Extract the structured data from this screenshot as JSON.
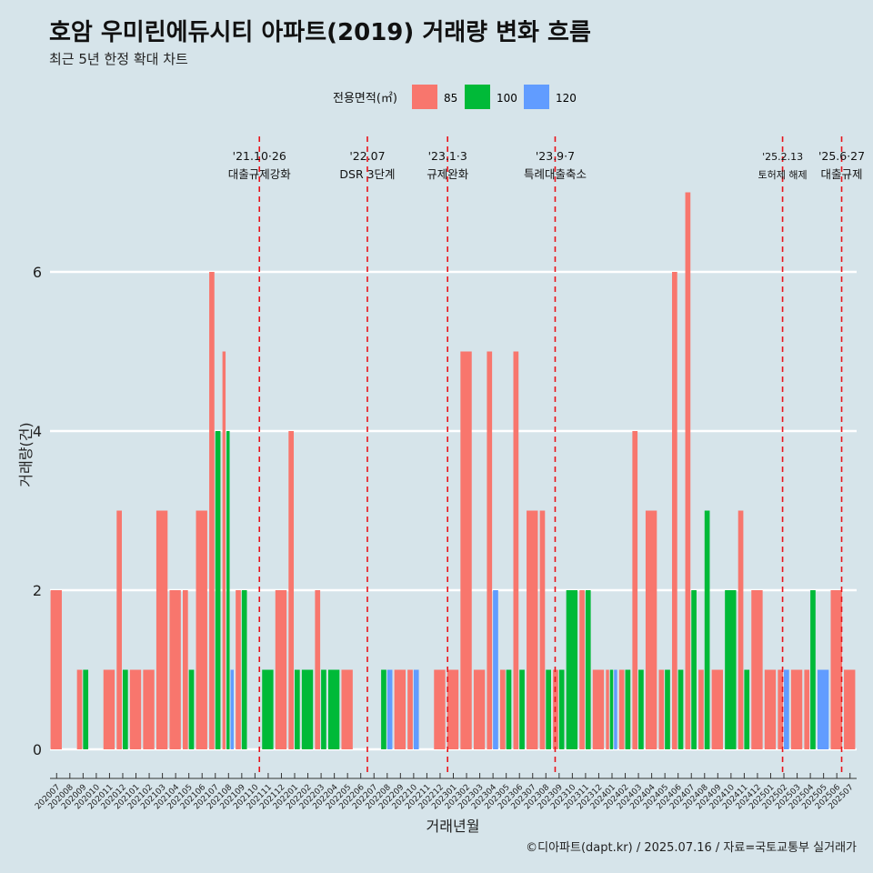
{
  "chart_data": {
    "type": "bar",
    "title": "호암 우미린에듀시티 아파트(2019) 거래량 변화 흐름",
    "subtitle": "최근 5년 한정 확대 차트",
    "xlabel": "거래년월",
    "ylabel": "거래량(건)",
    "ylim": [
      0,
      7
    ],
    "yticks": [
      0,
      2,
      4,
      6
    ],
    "grid": true,
    "legend": {
      "title": "전용면적(㎡)",
      "placement": "top",
      "entries": [
        {
          "name": "85",
          "color": "#f8766d"
        },
        {
          "name": "100",
          "color": "#00ba38"
        },
        {
          "name": "120",
          "color": "#619cff"
        }
      ]
    },
    "categories": [
      "202007",
      "202008",
      "202009",
      "202010",
      "202011",
      "202012",
      "202101",
      "202102",
      "202103",
      "202104",
      "202105",
      "202106",
      "202107",
      "202108",
      "202109",
      "202110",
      "202111",
      "202112",
      "202201",
      "202202",
      "202203",
      "202204",
      "202205",
      "202206",
      "202207",
      "202208",
      "202209",
      "202210",
      "202211",
      "202212",
      "202301",
      "202302",
      "202303",
      "202304",
      "202305",
      "202306",
      "202307",
      "202308",
      "202309",
      "202310",
      "202311",
      "202312",
      "202401",
      "202402",
      "202403",
      "202404",
      "202405",
      "202406",
      "202407",
      "202408",
      "202409",
      "202410",
      "202411",
      "202412",
      "202501",
      "202502",
      "202503",
      "202504",
      "202505",
      "202506",
      "202507"
    ],
    "series": [
      {
        "name": "85",
        "color": "#f8766d",
        "values": [
          2,
          0,
          1,
          0,
          1,
          3,
          1,
          1,
          3,
          2,
          2,
          3,
          6,
          5,
          2,
          0,
          0,
          2,
          4,
          0,
          2,
          0,
          1,
          0,
          0,
          0,
          1,
          1,
          0,
          1,
          1,
          5,
          1,
          5,
          1,
          5,
          3,
          3,
          1,
          0,
          2,
          1,
          1,
          1,
          4,
          3,
          1,
          6,
          7,
          1,
          1,
          0,
          3,
          2,
          1,
          1,
          1,
          1,
          0,
          2,
          1
        ]
      },
      {
        "name": "100",
        "color": "#00ba38",
        "values": [
          0,
          0,
          1,
          0,
          0,
          1,
          0,
          0,
          0,
          0,
          1,
          0,
          4,
          4,
          2,
          0,
          1,
          0,
          1,
          1,
          1,
          1,
          0,
          0,
          0,
          1,
          0,
          0,
          0,
          0,
          0,
          0,
          0,
          0,
          1,
          1,
          0,
          1,
          1,
          2,
          2,
          0,
          1,
          1,
          1,
          0,
          1,
          1,
          2,
          3,
          0,
          2,
          1,
          0,
          0,
          0,
          0,
          2,
          0,
          0,
          0
        ]
      },
      {
        "name": "120",
        "color": "#619cff",
        "values": [
          0,
          0,
          0,
          0,
          0,
          0,
          0,
          0,
          0,
          0,
          0,
          0,
          0,
          1,
          0,
          0,
          0,
          0,
          0,
          0,
          0,
          0,
          0,
          0,
          0,
          1,
          0,
          1,
          0,
          0,
          0,
          0,
          0,
          2,
          0,
          0,
          0,
          0,
          0,
          0,
          0,
          0,
          1,
          0,
          0,
          0,
          0,
          0,
          0,
          0,
          0,
          0,
          0,
          0,
          0,
          1,
          0,
          0,
          1,
          0,
          0
        ]
      }
    ],
    "events": [
      {
        "date": "2021-10-26",
        "label1": "'21.10·26",
        "label2": "대출규제강화"
      },
      {
        "date": "2022-07-01",
        "label1": "'22.07",
        "label2": "DSR 3단계"
      },
      {
        "date": "2023-01-03",
        "label1": "'23.1·3",
        "label2": "규제완화"
      },
      {
        "date": "2023-09-07",
        "label1": "'23.9·7",
        "label2": "특례대출축소"
      },
      {
        "date": "2025-02-13",
        "label1": "'25.2.13",
        "label2": "토허제 해제"
      },
      {
        "date": "2025-06-27",
        "label1": "'25.6·27",
        "label2": "대출규제"
      }
    ],
    "caption": "©디아파트(dapt.kr) / 2025.07.16 / 자료=국토교통부 실거래가"
  }
}
